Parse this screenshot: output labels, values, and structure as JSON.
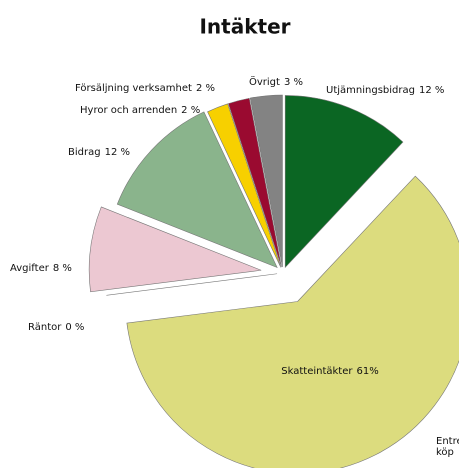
{
  "chart_data": {
    "type": "pie",
    "title": "Intäkter",
    "categories": [
      "Utjämningsbidrag",
      "Skatteintäkter",
      "Räntor",
      "Avgifter",
      "Bidrag",
      "Hyror och arrenden",
      "Försäljning verksamhet",
      "Övrigt"
    ],
    "values": [
      12,
      61,
      0,
      8,
      12,
      2,
      2,
      3
    ],
    "value_labels": [
      "12 %",
      "61%",
      "0 %",
      "8 %",
      "12 %",
      "2 %",
      "2 %",
      "3 %"
    ],
    "colors": [
      "#0b6623",
      "#dcdc7e",
      "#b0b0b0",
      "#ecc8d2",
      "#8ab48c",
      "#f7d000",
      "#9a0a30",
      "#838383"
    ],
    "annotations": [
      "Entre",
      "köp"
    ]
  }
}
